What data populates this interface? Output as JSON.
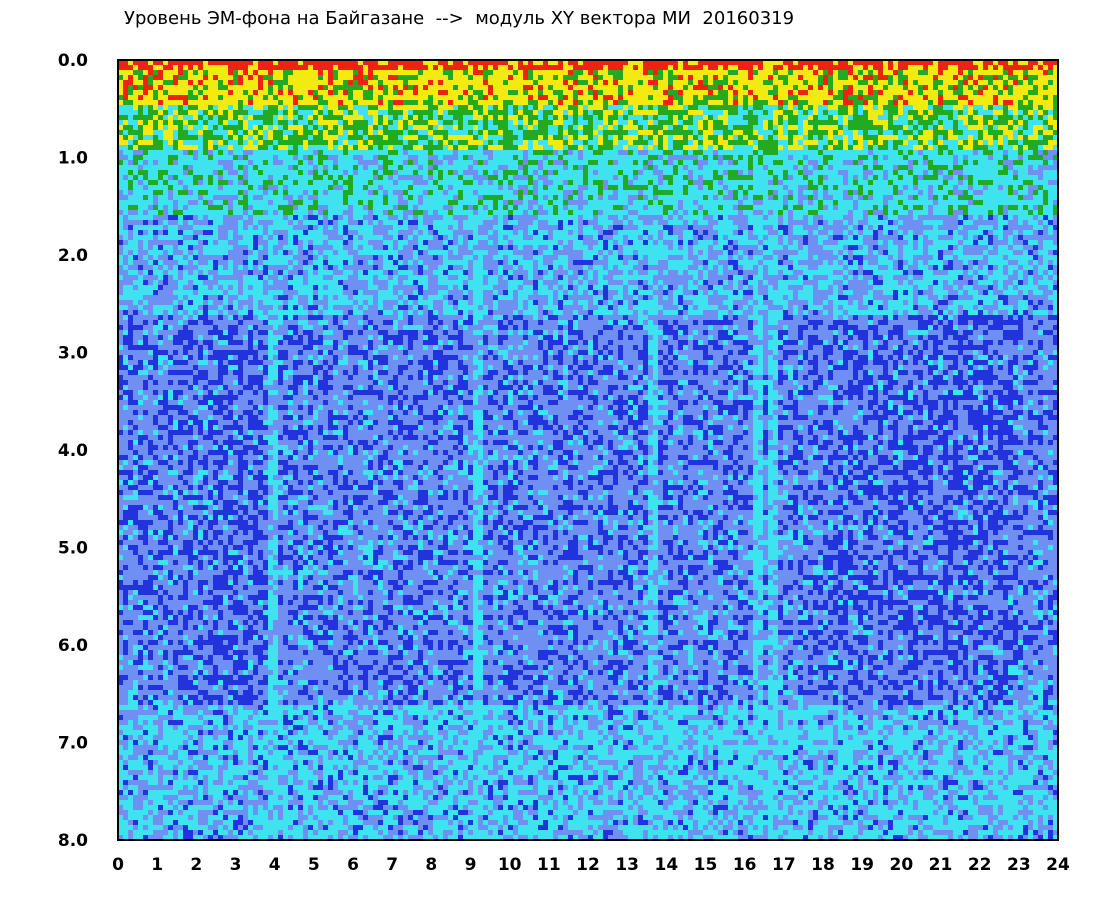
{
  "chart_data": {
    "type": "heatmap",
    "title": "Уровень ЭМ-фона на Байгазане  -->  модуль XY вектора МИ  20160319",
    "x_ticks": [
      "0",
      "1",
      "2",
      "3",
      "4",
      "5",
      "6",
      "7",
      "8",
      "9",
      "10",
      "11",
      "12",
      "13",
      "14",
      "15",
      "16",
      "17",
      "18",
      "19",
      "20",
      "21",
      "22",
      "23",
      "24"
    ],
    "y_ticks": [
      "0.0",
      "1.0",
      "2.0",
      "3.0",
      "4.0",
      "5.0",
      "6.0",
      "7.0",
      "8.0"
    ],
    "xlim": [
      0,
      24
    ],
    "ylim": [
      0,
      8
    ],
    "y_inverted": true,
    "colors": {
      "low": "#2233dd",
      "mid_low": "#6f8ff2",
      "mid": "#3fe3f0",
      "mid_high": "#22aa22",
      "high": "#f2ea10",
      "peak": "#ee2211"
    },
    "notes": "Density map: dense red/yellow/green band at top (0.0–1.0), cyan-blue in the middle, deep blue zone around 3–6, cyan again near 7–8. Vertical cyan bands near hours 4, 9.2, 13.7, 16.3."
  }
}
